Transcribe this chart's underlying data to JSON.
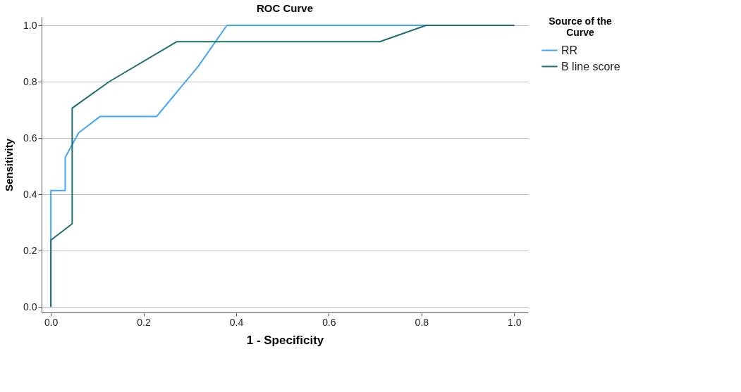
{
  "chart_data": {
    "type": "line",
    "title": "ROC Curve",
    "xlabel": "1 - Specificity",
    "ylabel": "Sensitivity",
    "legend_title": "Source of the Curve",
    "xlim": [
      -0.02,
      1.03
    ],
    "ylim": [
      -0.02,
      1.03
    ],
    "xticks": [
      {
        "value": 0,
        "label": "0.0"
      },
      0.2,
      0.4,
      0.6,
      0.8,
      {
        "value": 1,
        "label": "1.0"
      }
    ],
    "yticks": [
      {
        "value": 0,
        "label": "0.0"
      },
      0.2,
      0.4,
      0.6,
      0.8,
      {
        "value": 1,
        "label": "1.0"
      }
    ],
    "grid": "y",
    "legend": "top right",
    "line_style": "solid",
    "marker": "none",
    "series": [
      {
        "name": "RR",
        "color": "#42a5f5",
        "x": [
          0,
          0,
          0.031,
          0.031,
          0.06,
          0.106,
          0.228,
          0.318,
          0.38,
          1.0
        ],
        "values": [
          0,
          0.413,
          0.413,
          0.531,
          0.618,
          0.676,
          0.676,
          0.854,
          1.0,
          1.0
        ]
      },
      {
        "name": "B line score",
        "color": "#1f6e6e",
        "x": [
          0,
          0,
          0.046,
          0.046,
          0.126,
          0.272,
          0.71,
          0.81,
          1.0
        ],
        "values": [
          0,
          0.237,
          0.295,
          0.706,
          0.8,
          0.942,
          0.942,
          1.0,
          1.0
        ]
      }
    ]
  }
}
